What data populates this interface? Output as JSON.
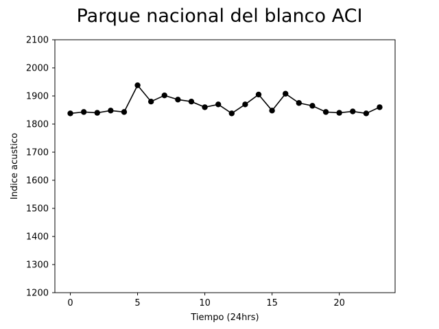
{
  "chart_data": {
    "type": "line",
    "title": "Parque nacional del blanco ACI",
    "xlabel": "Tiempo (24hrs)",
    "ylabel": "Indice acustico",
    "xlim": [
      -1.15,
      24.15
    ],
    "ylim": [
      1200,
      2100
    ],
    "xticks": [
      0,
      5,
      10,
      15,
      20
    ],
    "yticks": [
      1200,
      1300,
      1400,
      1500,
      1600,
      1700,
      1800,
      1900,
      2000,
      2100
    ],
    "grid": false,
    "legend": "none",
    "line_color": "#000000",
    "marker": "circle",
    "series": [
      {
        "x": [
          0,
          1,
          2,
          3,
          4,
          5,
          6,
          7,
          8,
          9,
          10,
          11,
          12,
          13,
          14,
          15,
          16,
          17,
          18,
          19,
          20,
          21,
          22,
          23
        ],
        "values": [
          1838,
          1843,
          1840,
          1848,
          1843,
          1938,
          1880,
          1902,
          1887,
          1880,
          1860,
          1870,
          1838,
          1870,
          1905,
          1848,
          1908,
          1875,
          1865,
          1843,
          1840,
          1845,
          1838,
          1860
        ]
      }
    ]
  }
}
